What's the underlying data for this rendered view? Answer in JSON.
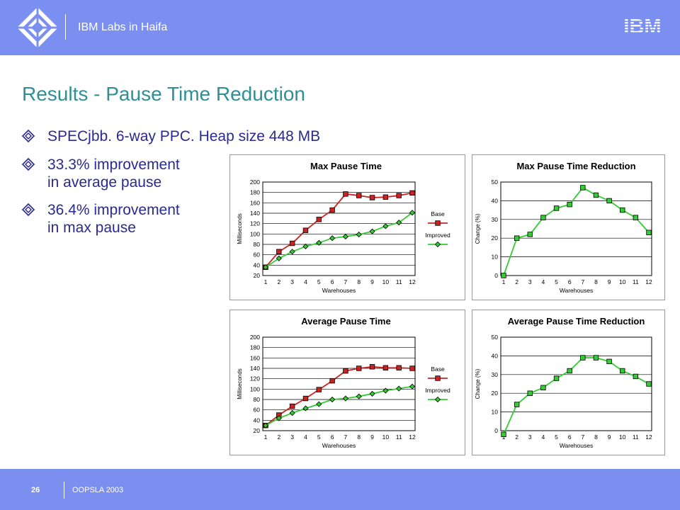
{
  "header": {
    "org": "IBM Labs in Haifa",
    "logo_text": "IBM"
  },
  "slide": {
    "title": "Results - Pause Time Reduction",
    "bullets": [
      {
        "text_lines": [
          "SPECjbb. 6-way PPC. Heap size 448 MB"
        ]
      },
      {
        "text_lines": [
          "33.3% improvement",
          "in average pause"
        ]
      },
      {
        "text_lines": [
          "36.4% improvement",
          "in max pause"
        ]
      }
    ]
  },
  "footer": {
    "page_number": "26",
    "conference": "OOPSLA 2003"
  },
  "colors": {
    "bar": "#7b8ff0",
    "title": "#2e8f94",
    "bullet": "#2a2a8f",
    "base": "#cc2222",
    "improved": "#33cc33"
  },
  "chart_data": [
    {
      "type": "line",
      "title": "Max Pause Time",
      "xlabel": "Warehouses",
      "ylabel": "Milliseconds",
      "x": [
        1,
        2,
        3,
        4,
        5,
        6,
        7,
        8,
        9,
        10,
        11,
        12
      ],
      "ylim": [
        20,
        200
      ],
      "yticks": [
        20,
        40,
        60,
        80,
        100,
        120,
        140,
        160,
        180,
        200
      ],
      "grid": true,
      "legend": "right",
      "series": [
        {
          "name": "Base",
          "color": "#cc2222",
          "marker": "square",
          "values": [
            36,
            66,
            82,
            107,
            128,
            146,
            177,
            174,
            170,
            171,
            174,
            179
          ]
        },
        {
          "name": "Improved",
          "color": "#33cc33",
          "marker": "diamond",
          "values": [
            36,
            53,
            66,
            76,
            83,
            92,
            95,
            99,
            105,
            115,
            122,
            141
          ]
        }
      ]
    },
    {
      "type": "line",
      "title": "Max Pause Time Reduction",
      "xlabel": "Warehouses",
      "ylabel": "Change (%)",
      "x": [
        1,
        2,
        3,
        4,
        5,
        6,
        7,
        8,
        9,
        10,
        11,
        12
      ],
      "ylim": [
        0,
        50
      ],
      "yticks": [
        0,
        10,
        20,
        30,
        40,
        50
      ],
      "grid": true,
      "series": [
        {
          "name": "",
          "color": "#33cc33",
          "marker": "square",
          "values": [
            0,
            20,
            22,
            31,
            36,
            38,
            47,
            43,
            40,
            35,
            31,
            23
          ]
        }
      ]
    },
    {
      "type": "line",
      "title": "Average Pause Time",
      "xlabel": "Warehouses",
      "ylabel": "Milliseconds",
      "x": [
        1,
        2,
        3,
        4,
        5,
        6,
        7,
        8,
        9,
        10,
        11,
        12
      ],
      "ylim": [
        20,
        200
      ],
      "yticks": [
        20,
        40,
        60,
        80,
        100,
        120,
        140,
        160,
        180,
        200
      ],
      "grid": true,
      "legend": "right",
      "series": [
        {
          "name": "Base",
          "color": "#cc2222",
          "marker": "square",
          "values": [
            30,
            50,
            67,
            82,
            99,
            116,
            135,
            140,
            143,
            141,
            141,
            140
          ]
        },
        {
          "name": "Improved",
          "color": "#33cc33",
          "marker": "diamond",
          "values": [
            30,
            44,
            54,
            63,
            71,
            80,
            82,
            86,
            91,
            97,
            101,
            105
          ]
        }
      ]
    },
    {
      "type": "line",
      "title": "Average Pause Time Reduction",
      "xlabel": "Warehouses",
      "ylabel": "Change (%)",
      "x": [
        1,
        2,
        3,
        4,
        5,
        6,
        7,
        8,
        9,
        10,
        11,
        12
      ],
      "ylim": [
        0,
        50
      ],
      "yticks": [
        0,
        10,
        20,
        30,
        40,
        50
      ],
      "grid": true,
      "series": [
        {
          "name": "",
          "color": "#33cc33",
          "marker": "square",
          "values": [
            -2,
            14,
            20,
            23,
            28,
            32,
            39,
            39,
            37,
            32,
            29,
            25
          ]
        }
      ]
    }
  ]
}
